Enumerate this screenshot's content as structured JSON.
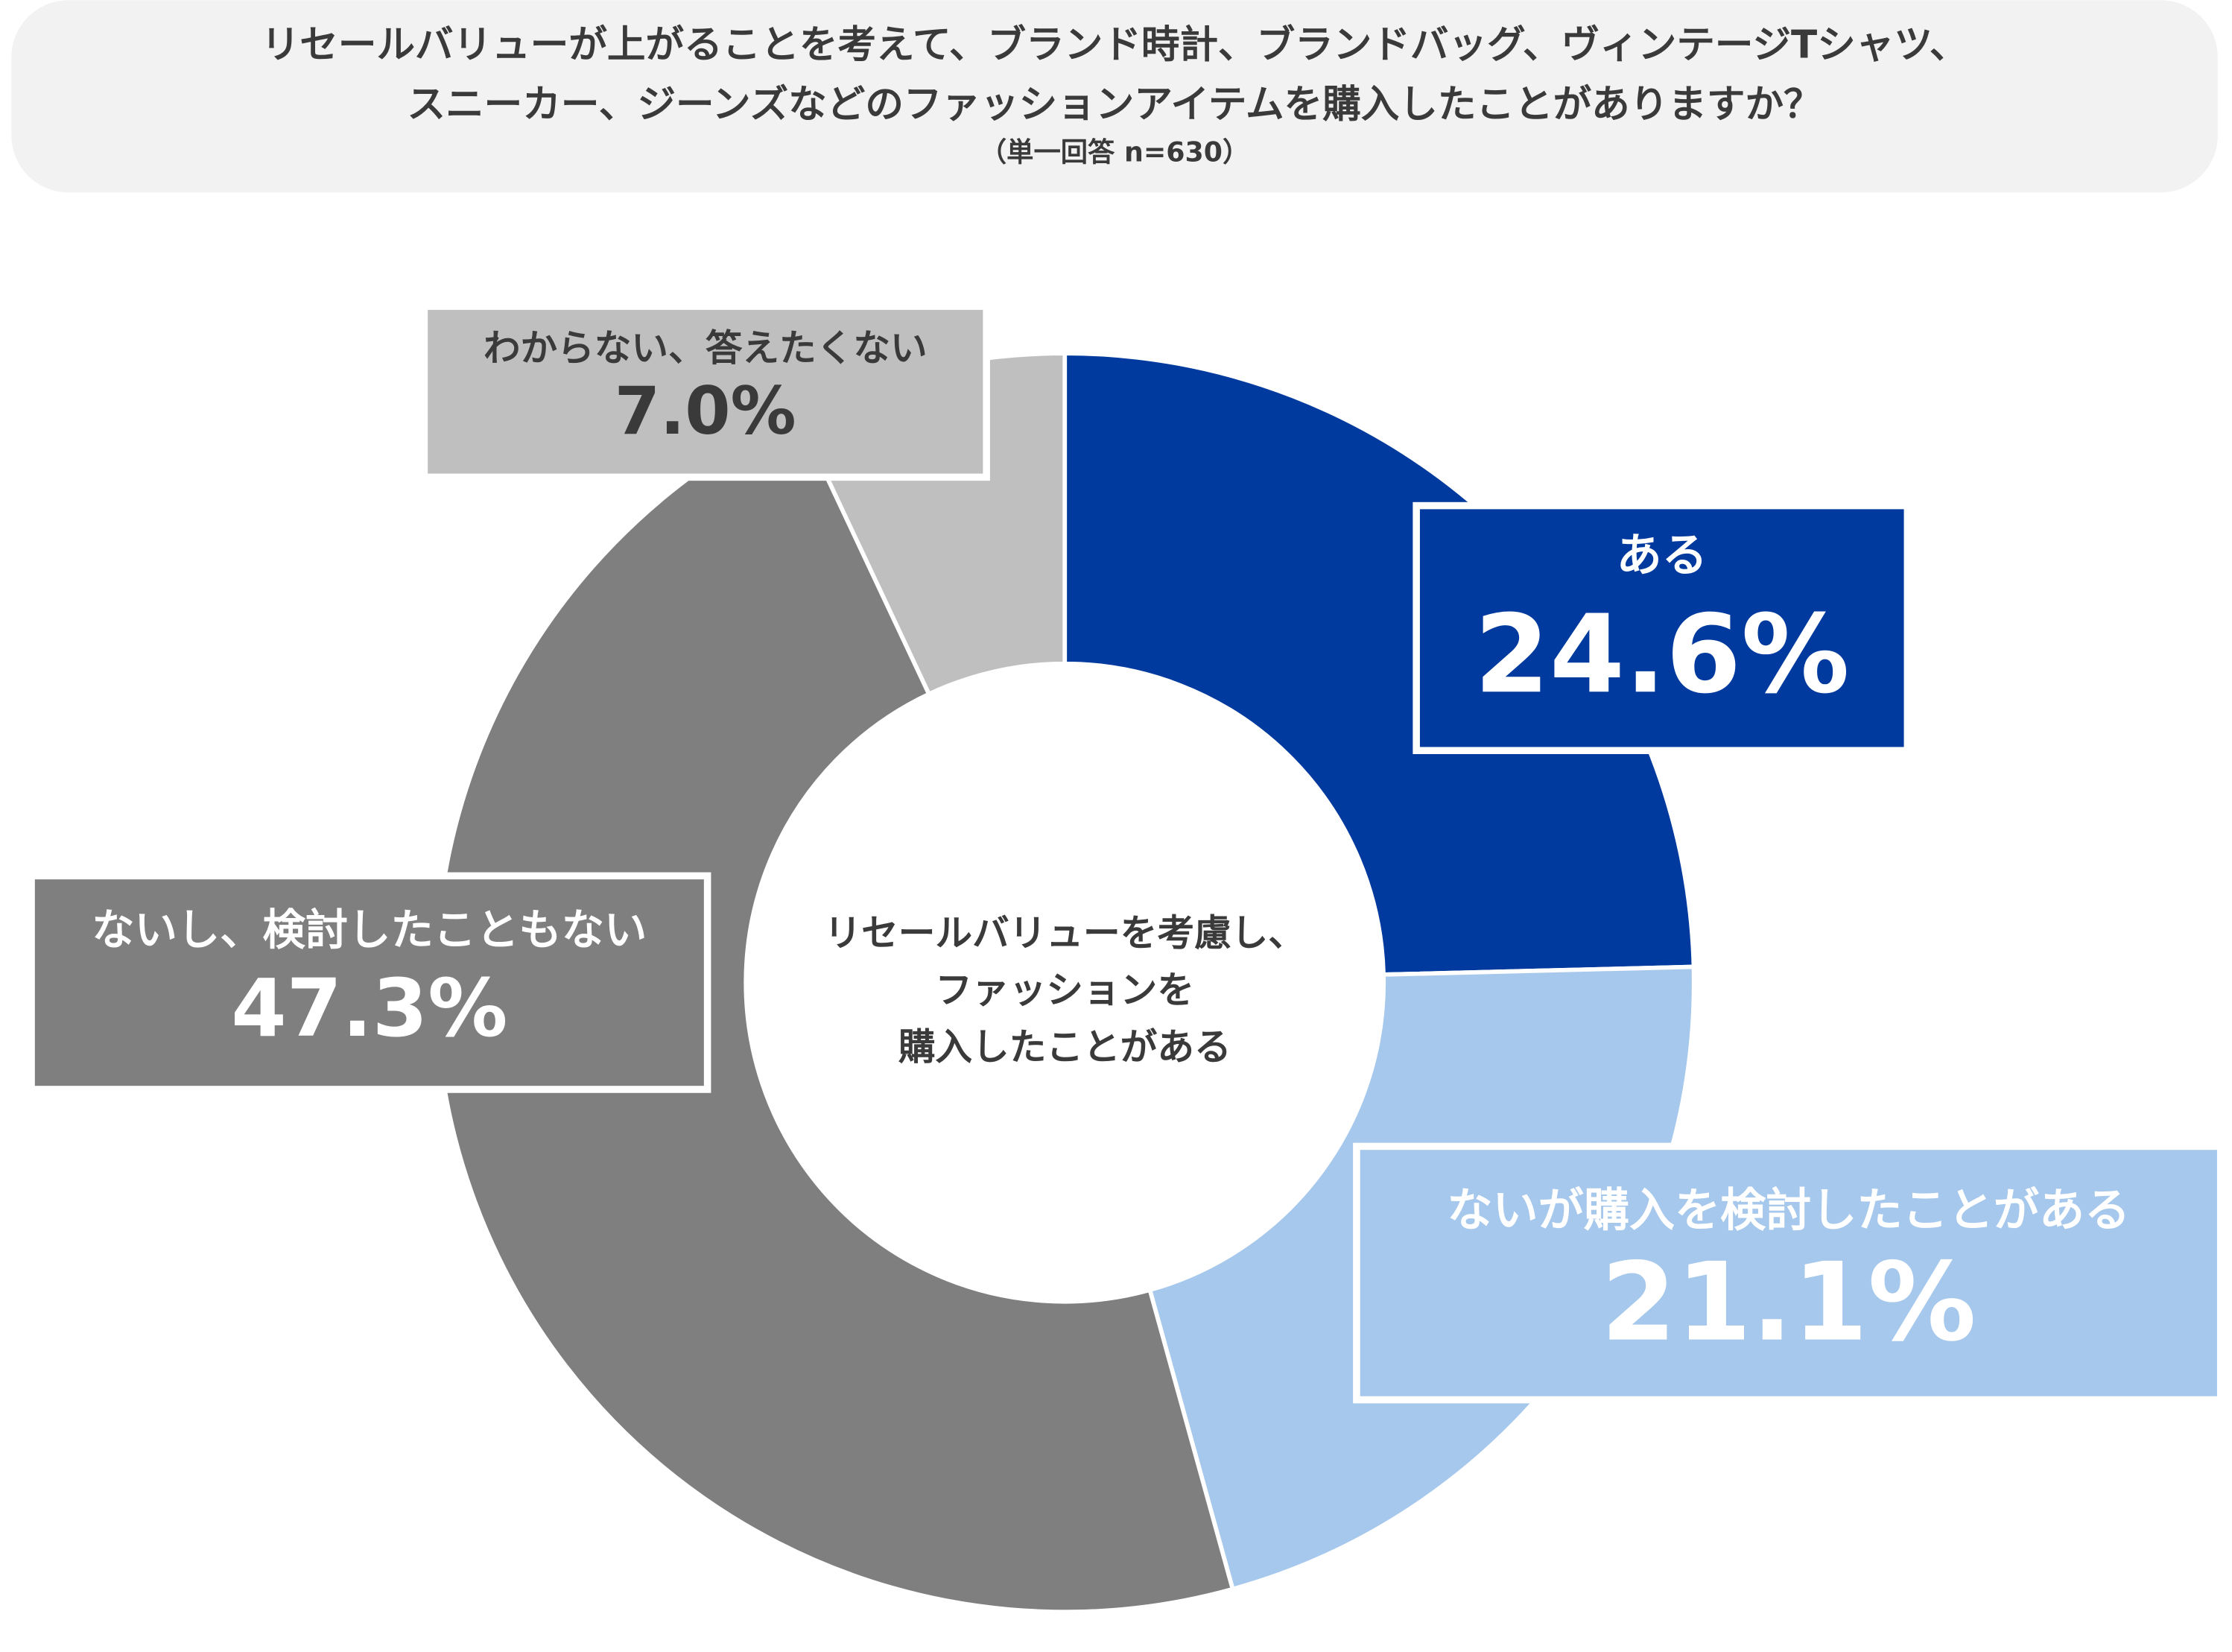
{
  "chart_data": {
    "type": "donut",
    "title": [
      "リセールバリューが上がることを考えて、ブランド時計、ブランドバッグ、ヴィンテージTシャツ、",
      "スニーカー、ジーンズなどのファッションアイテムを購入したことがありますか？"
    ],
    "subtitle": "（単一回答 n=630）",
    "center_label": [
      "リセールバリューを考慮し、",
      "ファッションを",
      "購入したことがある"
    ],
    "categories": [
      "ある",
      "ないが購入を検討したことがある",
      "ないし、検討したこともない",
      "わからない、答えたくない"
    ],
    "values": [
      24.6,
      21.1,
      47.3,
      7.0
    ],
    "value_labels": [
      "24.6%",
      "21.1%",
      "47.3%",
      "7.0%"
    ],
    "colors": [
      "#003a9e",
      "#a6c8ec",
      "#7f7f7f",
      "#bfbfbf"
    ]
  }
}
